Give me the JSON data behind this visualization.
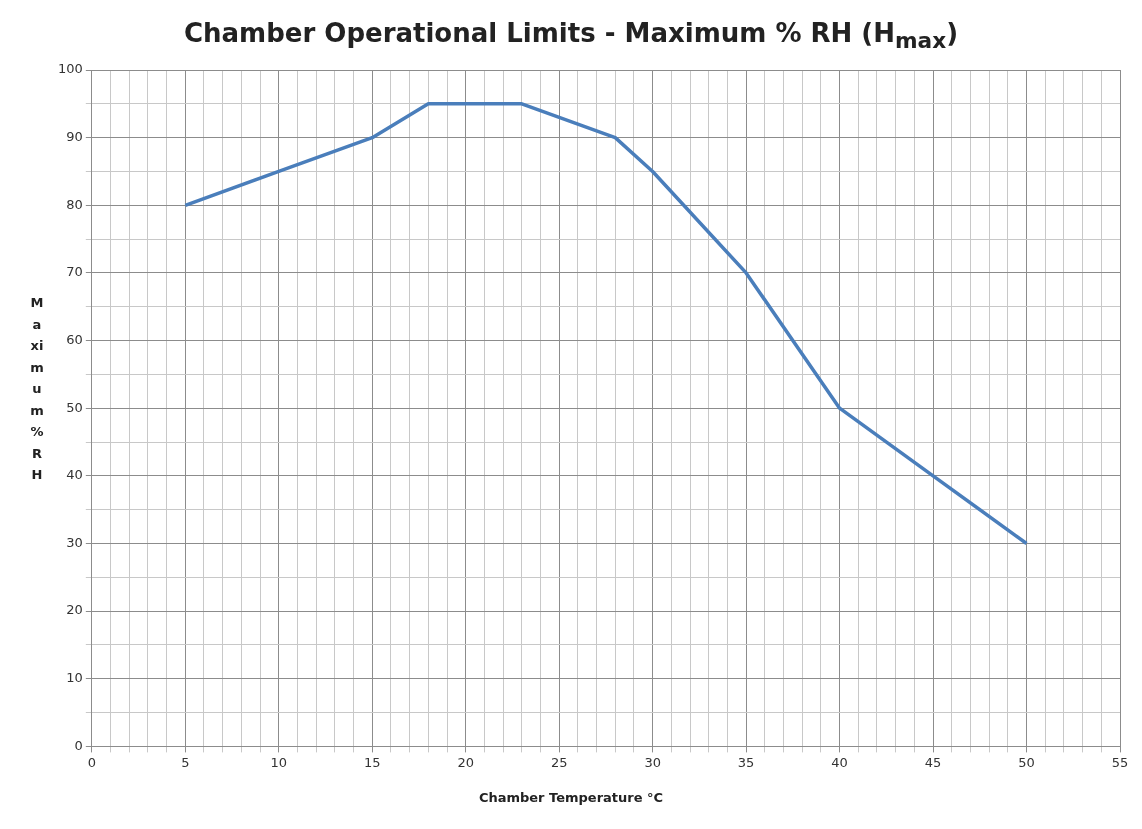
{
  "chart_data": {
    "type": "line",
    "title": "Chamber Operational Limits - Maximum % RH (H$_{max}$)",
    "xlabel": "Chamber Temperature  °C",
    "ylabel": "Maximum %RH",
    "x": [
      5,
      10,
      15,
      18,
      23,
      28,
      30,
      35,
      40,
      45,
      50
    ],
    "series": [
      {
        "color": "#4a7ebb",
        "values": [
          80,
          85,
          90,
          95,
          95,
          90,
          85,
          70,
          50,
          40,
          30
        ]
      }
    ],
    "xlim": [
      0,
      55
    ],
    "xticks": [
      0,
      {
        "value": 1,
        "label": null
      },
      {
        "value": 2,
        "label": null
      },
      {
        "value": 3,
        "label": null
      },
      {
        "value": 4,
        "label": null
      },
      5,
      {
        "value": 6,
        "label": null
      },
      {
        "value": 7,
        "label": null
      },
      {
        "value": 8,
        "label": null
      },
      {
        "value": 9,
        "label": null
      },
      10,
      {
        "value": 11,
        "label": null
      },
      {
        "value": 12,
        "label": null
      },
      {
        "value": 13,
        "label": null
      },
      {
        "value": 14,
        "label": null
      },
      15,
      {
        "value": 16,
        "label": null
      },
      {
        "value": 17,
        "label": null
      },
      {
        "value": 18,
        "label": null
      },
      {
        "value": 19,
        "label": null
      },
      20,
      {
        "value": 21,
        "label": null
      },
      {
        "value": 22,
        "label": null
      },
      {
        "value": 23,
        "label": null
      },
      {
        "value": 24,
        "label": null
      },
      25,
      {
        "value": 26,
        "label": null
      },
      {
        "value": 27,
        "label": null
      },
      {
        "value": 28,
        "label": null
      },
      {
        "value": 29,
        "label": null
      },
      30,
      {
        "value": 31,
        "label": null
      },
      {
        "value": 32,
        "label": null
      },
      {
        "value": 33,
        "label": null
      },
      {
        "value": 34,
        "label": null
      },
      35,
      {
        "value": 36,
        "label": null
      },
      {
        "value": 37,
        "label": null
      },
      {
        "value": 38,
        "label": null
      },
      {
        "value": 39,
        "label": null
      },
      40,
      {
        "value": 41,
        "label": null
      },
      {
        "value": 42,
        "label": null
      },
      {
        "value": 43,
        "label": null
      },
      {
        "value": 44,
        "label": null
      },
      45,
      {
        "value": 46,
        "label": null
      },
      {
        "value": 47,
        "label": null
      },
      {
        "value": 48,
        "label": null
      },
      {
        "value": 49,
        "label": null
      },
      50,
      {
        "value": 51,
        "label": null
      },
      {
        "value": 52,
        "label": null
      },
      {
        "value": 53,
        "label": null
      },
      {
        "value": 54,
        "label": null
      },
      55
    ],
    "ylim": [
      0,
      100
    ],
    "yticks": [
      0,
      {
        "value": 5,
        "label": null
      },
      10,
      {
        "value": 15,
        "label": null
      },
      20,
      {
        "value": 25,
        "label": null
      },
      30,
      {
        "value": 35,
        "label": null
      },
      40,
      {
        "value": 45,
        "label": null
      },
      50,
      {
        "value": 55,
        "label": null
      },
      60,
      {
        "value": 65,
        "label": null
      },
      70,
      {
        "value": 75,
        "label": null
      },
      80,
      {
        "value": 85,
        "label": null
      },
      90,
      {
        "value": 95,
        "label": null
      },
      100
    ],
    "grid": true,
    "legend": false,
    "marker": "none",
    "line_style": "solid"
  }
}
